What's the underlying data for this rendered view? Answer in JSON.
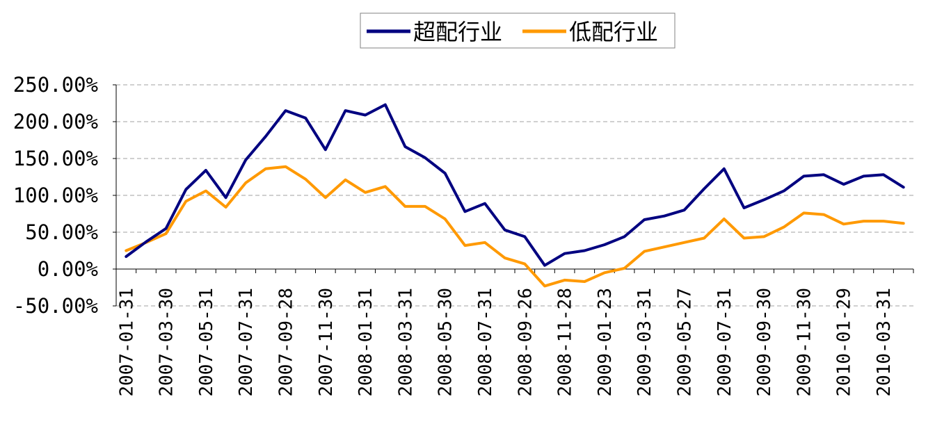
{
  "chart_data": {
    "type": "line",
    "title": "",
    "xlabel": "",
    "ylabel": "",
    "ylim": [
      -50,
      250
    ],
    "yticks": [
      -50,
      0,
      50,
      100,
      150,
      200,
      250
    ],
    "ytick_labels": [
      "-50.00%",
      "0.00%",
      "50.00%",
      "100.00%",
      "150.00%",
      "200.00%",
      "250.00%"
    ],
    "grid": "horizontal dashed",
    "legend_position": "top-center",
    "x_tick_labels": [
      "2007-01-31",
      "2007-03-30",
      "2007-05-31",
      "2007-07-31",
      "2007-09-28",
      "2007-11-30",
      "2008-01-31",
      "2008-03-31",
      "2008-05-30",
      "2008-07-31",
      "2008-09-26",
      "2008-11-28",
      "2009-01-23",
      "2009-03-31",
      "2009-05-27",
      "2009-07-31",
      "2009-09-30",
      "2009-11-30",
      "2010-01-29",
      "2010-03-31"
    ],
    "series": [
      {
        "name": "超配行业",
        "color": "#000080",
        "values": [
          17,
          37,
          55,
          108,
          134,
          97,
          148,
          180,
          215,
          205,
          162,
          215,
          209,
          223,
          166,
          151,
          130,
          78,
          89,
          53,
          44,
          5,
          21,
          25,
          33,
          44,
          67,
          72,
          80,
          109,
          136,
          83,
          94,
          106,
          126,
          128,
          115,
          126,
          128,
          111
        ]
      },
      {
        "name": "低配行业",
        "color": "#FF9900",
        "values": [
          25,
          36,
          48,
          92,
          106,
          84,
          117,
          136,
          139,
          122,
          97,
          121,
          104,
          112,
          85,
          85,
          68,
          32,
          36,
          15,
          7,
          -23,
          -15,
          -17,
          -5,
          1,
          24,
          30,
          36,
          42,
          68,
          42,
          44,
          57,
          76,
          74,
          61,
          65,
          65,
          62
        ]
      }
    ]
  }
}
